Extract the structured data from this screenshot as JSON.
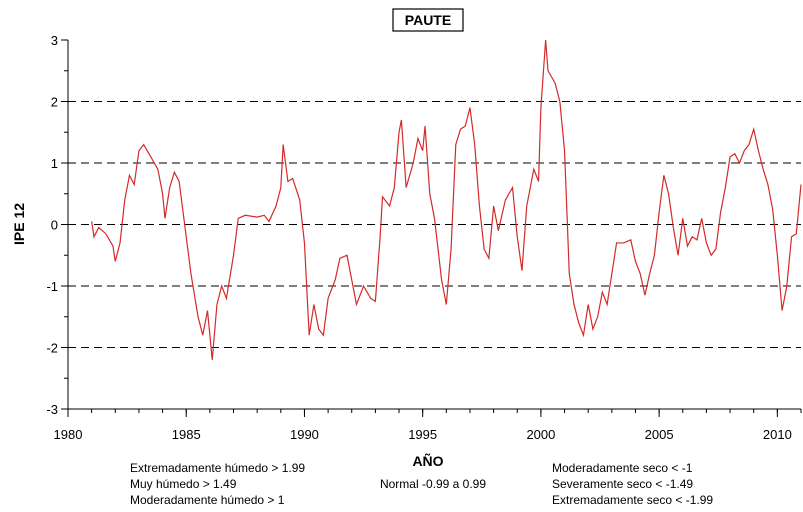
{
  "chart_data": {
    "type": "line",
    "title": "PAUTE",
    "xlabel": "AÑO",
    "ylabel": "IPE 12",
    "x": [
      1981.0,
      1981.1,
      1981.3,
      1981.6,
      1981.9,
      1982.0,
      1982.2,
      1982.4,
      1982.6,
      1982.8,
      1983.0,
      1983.2,
      1983.5,
      1983.8,
      1984.0,
      1984.1,
      1984.3,
      1984.5,
      1984.7,
      1984.9,
      1985.2,
      1985.5,
      1985.7,
      1985.9,
      1986.1,
      1986.3,
      1986.5,
      1986.7,
      1987.0,
      1987.2,
      1987.5,
      1988.0,
      1988.3,
      1988.5,
      1988.8,
      1989.0,
      1989.1,
      1989.3,
      1989.5,
      1989.8,
      1990.0,
      1990.2,
      1990.4,
      1990.6,
      1990.8,
      1991.0,
      1991.3,
      1991.5,
      1991.8,
      1992.0,
      1992.2,
      1992.5,
      1992.8,
      1993.0,
      1993.2,
      1993.3,
      1993.6,
      1993.8,
      1994.0,
      1994.1,
      1994.3,
      1994.6,
      1994.8,
      1995.0,
      1995.1,
      1995.3,
      1995.5,
      1995.8,
      1996.0,
      1996.2,
      1996.4,
      1996.6,
      1996.8,
      1997.0,
      1997.2,
      1997.4,
      1997.6,
      1997.8,
      1998.0,
      1998.2,
      1998.5,
      1998.8,
      1999.0,
      1999.2,
      1999.4,
      1999.7,
      1999.9,
      2000.0,
      2000.2,
      2000.3,
      2000.6,
      2000.8,
      2001.0,
      2001.2,
      2001.4,
      2001.6,
      2001.8,
      2002.0,
      2002.2,
      2002.4,
      2002.6,
      2002.8,
      2003.0,
      2003.2,
      2003.5,
      2003.8,
      2004.0,
      2004.2,
      2004.4,
      2004.6,
      2004.8,
      2005.0,
      2005.2,
      2005.4,
      2005.6,
      2005.8,
      2006.0,
      2006.2,
      2006.4,
      2006.6,
      2006.8,
      2007.0,
      2007.2,
      2007.4,
      2007.6,
      2007.8,
      2008.0,
      2008.2,
      2008.4,
      2008.6,
      2008.8,
      2009.0,
      2009.2,
      2009.4,
      2009.6,
      2009.8,
      2010.0,
      2010.2,
      2010.4,
      2010.6,
      2010.8,
      2011.0
    ],
    "series": [
      {
        "name": "IPE 12",
        "color": "#d42a2a",
        "values": [
          0.05,
          -0.2,
          -0.05,
          -0.15,
          -0.35,
          -0.6,
          -0.3,
          0.4,
          0.8,
          0.65,
          1.2,
          1.3,
          1.1,
          0.9,
          0.5,
          0.1,
          0.6,
          0.85,
          0.7,
          0.1,
          -0.8,
          -1.5,
          -1.8,
          -1.4,
          -2.2,
          -1.3,
          -1.0,
          -1.2,
          -0.5,
          0.1,
          0.15,
          0.12,
          0.15,
          0.05,
          0.3,
          0.6,
          1.3,
          0.7,
          0.75,
          0.4,
          -0.3,
          -1.8,
          -1.3,
          -1.7,
          -1.8,
          -1.2,
          -0.9,
          -0.55,
          -0.5,
          -0.9,
          -1.3,
          -1.0,
          -1.2,
          -1.25,
          -0.2,
          0.45,
          0.3,
          0.6,
          1.5,
          1.7,
          0.6,
          1.0,
          1.4,
          1.2,
          1.6,
          0.5,
          0.1,
          -0.9,
          -1.3,
          -0.4,
          1.3,
          1.55,
          1.6,
          1.9,
          1.3,
          0.3,
          -0.4,
          -0.55,
          0.3,
          -0.1,
          0.4,
          0.6,
          -0.2,
          -0.75,
          0.3,
          0.9,
          0.7,
          1.9,
          3.0,
          2.5,
          2.3,
          2.0,
          1.2,
          -0.8,
          -1.3,
          -1.6,
          -1.8,
          -1.3,
          -1.7,
          -1.5,
          -1.1,
          -1.3,
          -0.8,
          -0.3,
          -0.3,
          -0.25,
          -0.6,
          -0.8,
          -1.15,
          -0.8,
          -0.5,
          0.2,
          0.8,
          0.5,
          -0.05,
          -0.5,
          0.1,
          -0.35,
          -0.2,
          -0.25,
          0.1,
          -0.3,
          -0.5,
          -0.4,
          0.2,
          0.6,
          1.1,
          1.15,
          1.0,
          1.2,
          1.3,
          1.55,
          1.2,
          0.9,
          0.65,
          0.25,
          -0.5,
          -1.4,
          -1.0,
          -0.2,
          -0.15,
          0.65
        ]
      }
    ],
    "xlim": [
      1980,
      2011
    ],
    "xticks": [
      1980,
      1985,
      1990,
      1995,
      2000,
      2005,
      2010
    ],
    "ylim": [
      -3,
      3
    ],
    "yticks": [
      -3,
      -2,
      -1,
      0,
      1,
      2,
      3
    ],
    "grid": true,
    "notes": {
      "left": [
        "Extremadamente húmedo > 1.99",
        "Muy húmedo > 1.49",
        "Moderadamente húmedo > 1"
      ],
      "center": [
        "Normal -0.99 a 0.99"
      ],
      "right": [
        "Moderadamente seco < -1",
        "Severamente seco < -1.49",
        "Extremadamente seco < -1.99"
      ]
    }
  }
}
